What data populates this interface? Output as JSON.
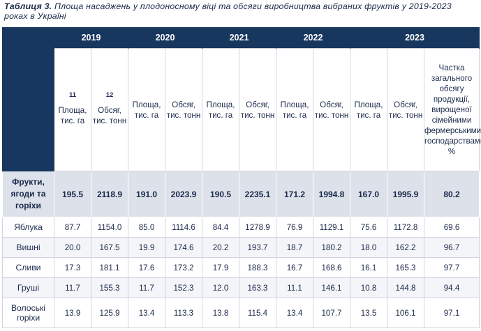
{
  "caption": {
    "label": "Таблиця 3.",
    "text": " Площа насаджень у плодоносному віці та обсяги виробництва вибраних фруктів у 2019-2023 роках в Україні"
  },
  "table": {
    "years": [
      "2019",
      "2020",
      "2021",
      "2022",
      "2023"
    ],
    "headers": [
      {
        "text": "Площа, тис. га",
        "sup": "11"
      },
      {
        "text": "Обсяг, тис. тонн",
        "sup": "12"
      },
      {
        "text": "Площа, тис. га",
        "sup": ""
      },
      {
        "text": "Обсяг, тис. тонн",
        "sup": ""
      },
      {
        "text": "Площа, тис. га",
        "sup": ""
      },
      {
        "text": "Обсяг, тис. тонн",
        "sup": ""
      },
      {
        "text": "Площа, тис. га",
        "sup": ""
      },
      {
        "text": "Обсяг, тис. тонн",
        "sup": ""
      },
      {
        "text": "Площа, тис. га",
        "sup": ""
      },
      {
        "text": "Обсяг, тис. тонн",
        "sup": ""
      },
      {
        "text": "Частка загального обсягу продукції, вирощеної сімейними фермерськими господарствами, %",
        "sup": ""
      }
    ],
    "total": {
      "label": "Фрукти, ягоди та горіхи",
      "values": [
        "195.5",
        "2118.9",
        "191.0",
        "2023.9",
        "190.5",
        "2235.1",
        "171.2",
        "1994.8",
        "167.0",
        "1995.9",
        "80.2"
      ]
    },
    "rows": [
      {
        "label": "Яблука",
        "values": [
          "87.7",
          "1154.0",
          "85.0",
          "1114.6",
          "84.4",
          "1278.9",
          "76.9",
          "1129.1",
          "75.6",
          "1172.8",
          "69.6"
        ]
      },
      {
        "label": "Вишні",
        "values": [
          "20.0",
          "167.5",
          "19.9",
          "174.6",
          "20.2",
          "193.7",
          "18.7",
          "180.2",
          "18.0",
          "162.2",
          "96.7"
        ]
      },
      {
        "label": "Сливи",
        "values": [
          "17.3",
          "181.1",
          "17.6",
          "173.2",
          "17.9",
          "188.3",
          "16.7",
          "168.6",
          "16.1",
          "165.3",
          "97.7"
        ]
      },
      {
        "label": "Груші",
        "values": [
          "11.7",
          "155.3",
          "11.7",
          "152.3",
          "12.0",
          "163.3",
          "11.1",
          "146.1",
          "10.8",
          "144.8",
          "94.4"
        ]
      },
      {
        "label": "Волоські горіхи",
        "values": [
          "13.9",
          "125.9",
          "13.4",
          "113.3",
          "13.8",
          "115.4",
          "13.4",
          "107.7",
          "13.5",
          "106.1",
          "97.1"
        ]
      }
    ]
  }
}
